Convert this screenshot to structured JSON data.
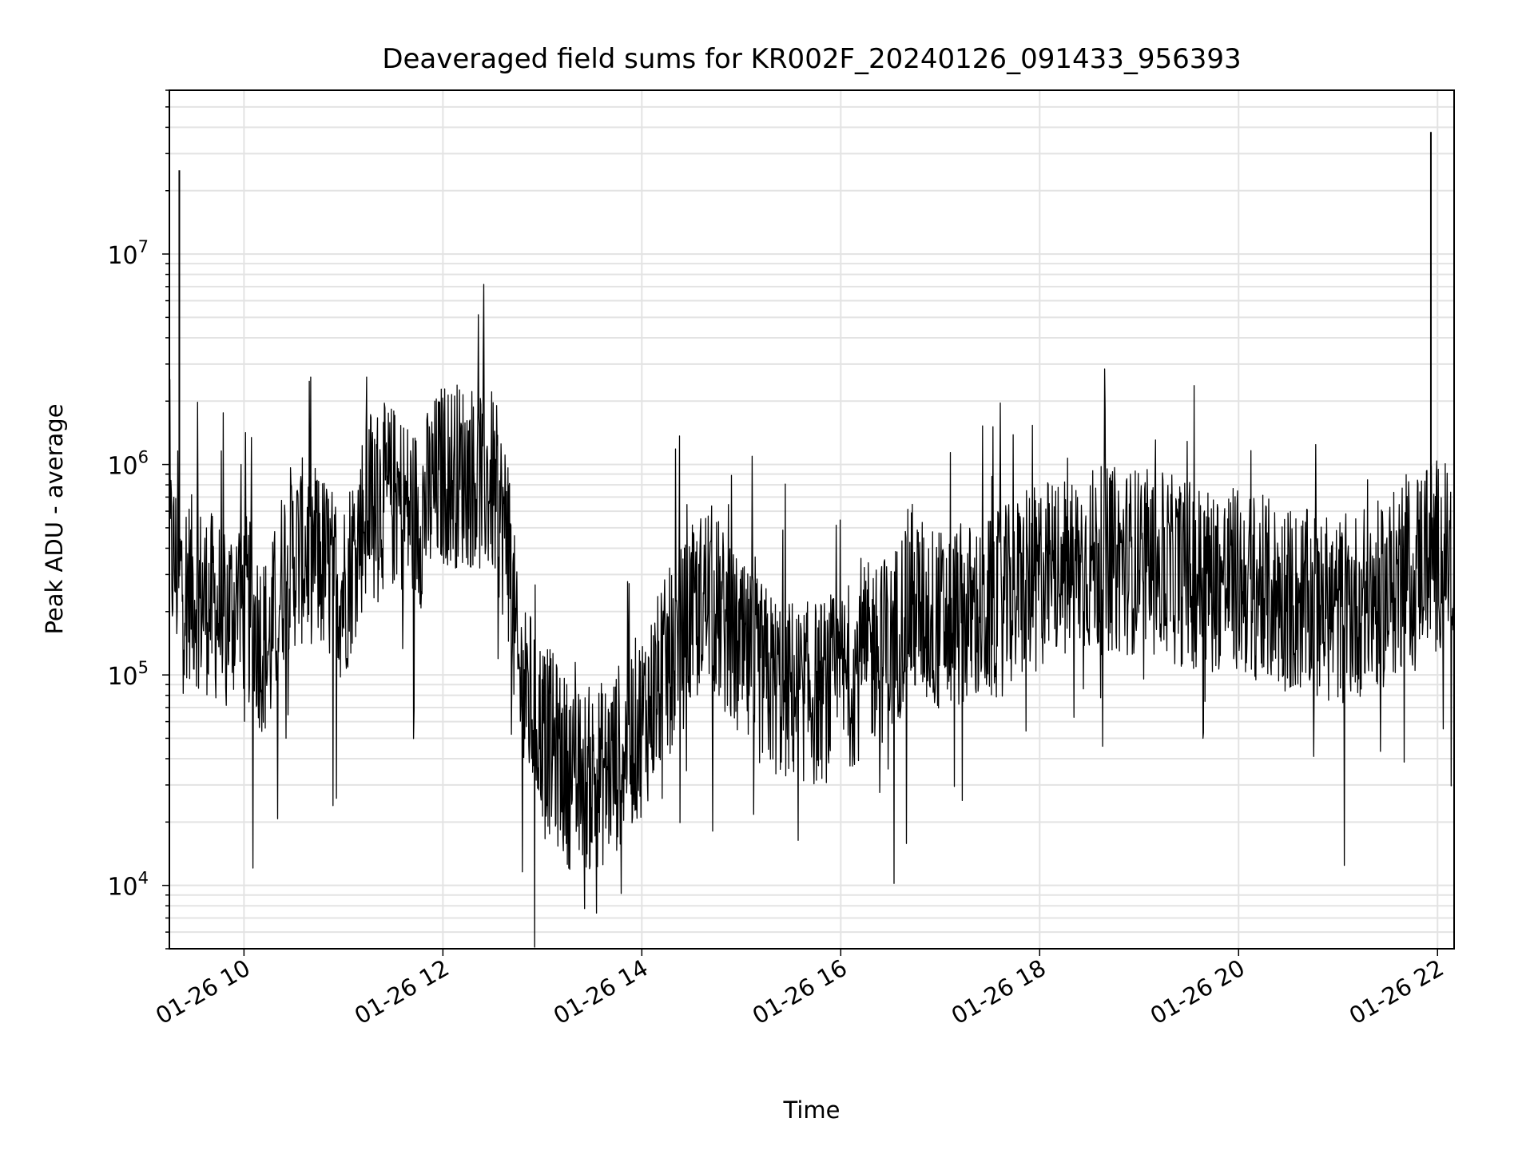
{
  "chart_data": {
    "type": "line",
    "title": "Deaveraged field sums for KR002F_20240126_091433_956393",
    "xlabel": "Time",
    "ylabel": "Peak ADU - average",
    "yscale": "log",
    "x_range": [
      "2024-01-26 09:15",
      "2024-01-26 22:10"
    ],
    "ylim": [
      5000,
      60000000
    ],
    "x_ticks": [
      {
        "at": "2024-01-26 10:00",
        "label": "01-26 10"
      },
      {
        "at": "2024-01-26 12:00",
        "label": "01-26 12"
      },
      {
        "at": "2024-01-26 14:00",
        "label": "01-26 14"
      },
      {
        "at": "2024-01-26 16:00",
        "label": "01-26 16"
      },
      {
        "at": "2024-01-26 18:00",
        "label": "01-26 18"
      },
      {
        "at": "2024-01-26 20:00",
        "label": "01-26 20"
      },
      {
        "at": "2024-01-26 22:00",
        "label": "01-26 22"
      }
    ],
    "y_ticks": [
      {
        "value": 10000,
        "base": "10",
        "exp": "4"
      },
      {
        "value": 100000,
        "base": "10",
        "exp": "5"
      },
      {
        "value": 1000000,
        "base": "10",
        "exp": "6"
      },
      {
        "value": 10000000,
        "base": "10",
        "exp": "7"
      }
    ],
    "grid": true,
    "line_color": "#000000",
    "grid_color": "#e3e3e3",
    "series": [
      {
        "x": [
          "2024-01-26 09:15",
          "2024-01-26 09:20",
          "2024-01-26 09:30",
          "2024-01-26 09:45",
          "2024-01-26 10:00",
          "2024-01-26 10:10",
          "2024-01-26 10:15",
          "2024-01-26 10:25",
          "2024-01-26 10:40",
          "2024-01-26 11:00",
          "2024-01-26 11:15",
          "2024-01-26 11:30",
          "2024-01-26 11:45",
          "2024-01-26 12:00",
          "2024-01-26 12:15",
          "2024-01-26 12:30",
          "2024-01-26 12:40",
          "2024-01-26 12:45",
          "2024-01-26 13:00",
          "2024-01-26 13:20",
          "2024-01-26 13:40",
          "2024-01-26 14:00",
          "2024-01-26 14:20",
          "2024-01-26 14:40",
          "2024-01-26 15:00",
          "2024-01-26 15:20",
          "2024-01-26 15:40",
          "2024-01-26 16:00",
          "2024-01-26 16:20",
          "2024-01-26 16:30",
          "2024-01-26 16:40",
          "2024-01-26 17:00",
          "2024-01-26 17:30",
          "2024-01-26 18:00",
          "2024-01-26 18:30",
          "2024-01-26 19:00",
          "2024-01-26 19:30",
          "2024-01-26 20:00",
          "2024-01-26 20:30",
          "2024-01-26 21:00",
          "2024-01-26 21:30",
          "2024-01-26 21:55",
          "2024-01-26 22:10"
        ],
        "y": [
          400000,
          300000,
          250000,
          200000,
          220000,
          150000,
          130000,
          350000,
          400000,
          250000,
          700000,
          700000,
          550000,
          900000,
          900000,
          800000,
          400000,
          100000,
          55000,
          30000,
          35000,
          60000,
          130000,
          250000,
          120000,
          90000,
          80000,
          90000,
          130000,
          130000,
          220000,
          180000,
          200000,
          300000,
          350000,
          350000,
          300000,
          280000,
          230000,
          200000,
          250000,
          400000,
          350000
        ]
      }
    ],
    "spikes": [
      {
        "x": "2024-01-26 09:21",
        "y": 25000000
      },
      {
        "x": "2024-01-26 21:56",
        "y": 38000000
      }
    ]
  }
}
